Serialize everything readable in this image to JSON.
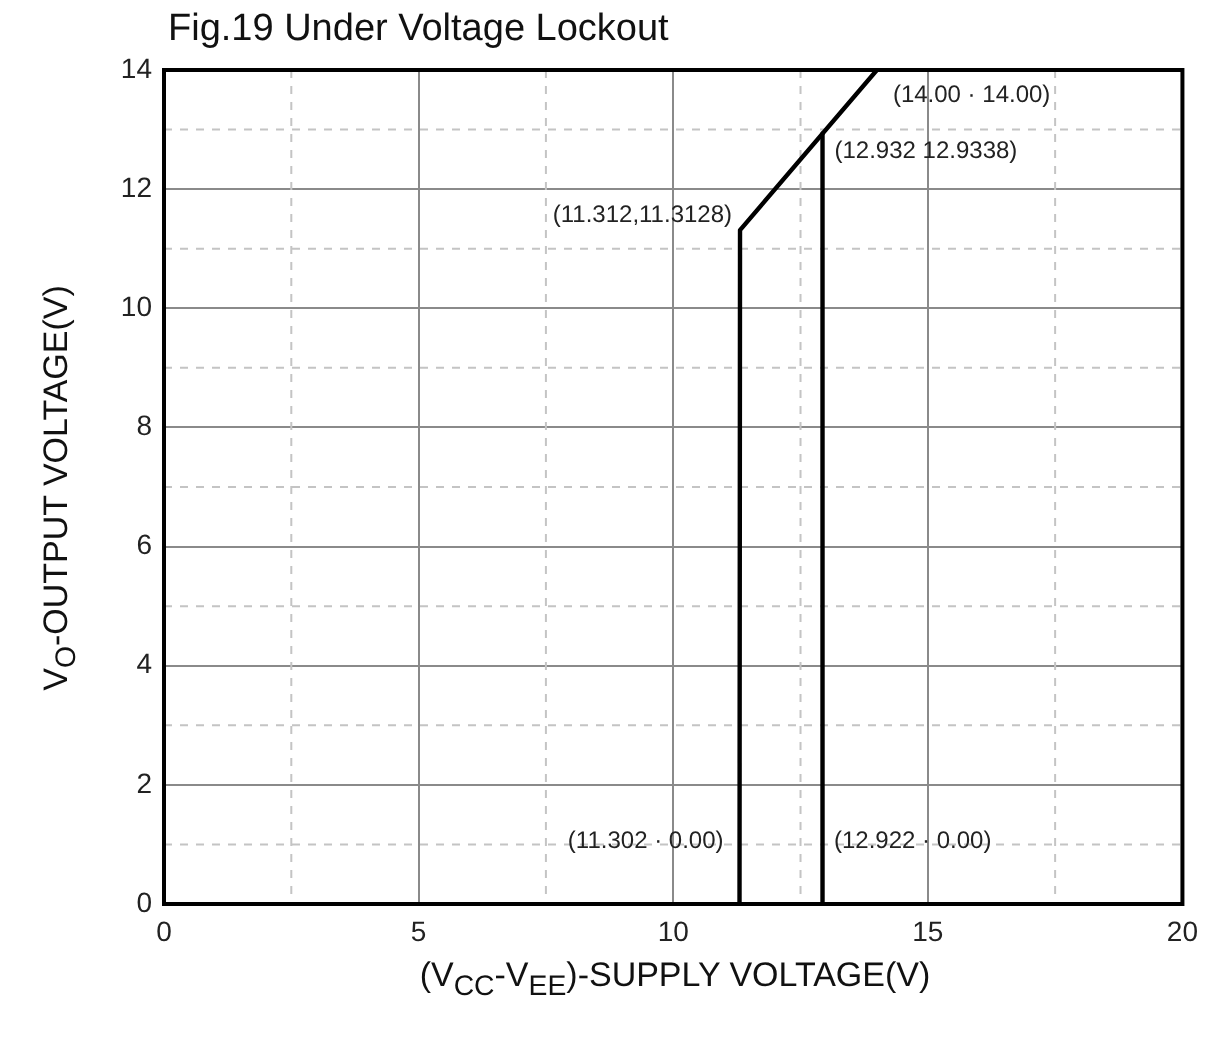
{
  "chart_data": {
    "type": "line",
    "title": "Fig.19 Under Voltage Lockout",
    "xlabel": "(V$_{CC}$-V$_{EE}$)-SUPPLY VOLTAGE(V)",
    "ylabel": "V$_{O}$-OUTPUT VOLTAGE(V)",
    "series": [
      {
        "color": "#000000",
        "x": [
          11.302,
          11.312,
          14
        ],
        "values": [
          0,
          11.3128,
          14
        ]
      },
      {
        "color": "#000000",
        "x": [
          12.922,
          12.932
        ],
        "values": [
          0,
          12.9338
        ]
      }
    ],
    "xlim": [
      0,
      20
    ],
    "xticks": [
      0,
      {
        "value": 2.5,
        "label": null
      },
      5,
      {
        "value": 7.5,
        "label": null
      },
      10,
      {
        "value": 12.5,
        "label": null
      },
      15,
      {
        "value": 17.5,
        "label": null
      },
      20
    ],
    "ylim": [
      0,
      14
    ],
    "yticks": [
      0,
      {
        "value": 1,
        "label": null
      },
      2,
      {
        "value": 3,
        "label": null
      },
      4,
      {
        "value": 5,
        "label": null
      },
      6,
      {
        "value": 7,
        "label": null
      },
      8,
      {
        "value": 9,
        "label": null
      },
      10,
      {
        "value": 11,
        "label": null
      },
      12,
      {
        "value": 13,
        "label": null
      },
      14
    ],
    "grid": true,
    "legend": false,
    "marker": "none",
    "line_style": "solid",
    "annotations": [
      {
        "text": "(11.312,11.3128)",
        "x": 11.312,
        "y": 11.3128
      },
      {
        "text": "(14.00 · 14.00)",
        "x": 14,
        "y": 14
      },
      {
        "text": "(12.932 12.9338)",
        "x": 12.932,
        "y": 12.9338
      },
      {
        "text": "(11.302 · 0.00)",
        "x": 11.302,
        "y": 0
      },
      {
        "text": "(12.922 · 0.00)",
        "x": 12.922,
        "y": 0
      }
    ]
  }
}
